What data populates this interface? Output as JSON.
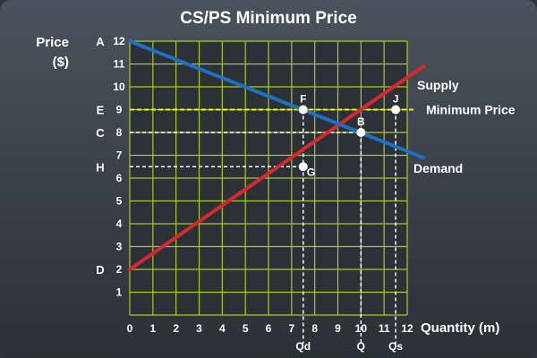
{
  "chart_data": {
    "type": "line",
    "title": "CS/PS Minimum Price",
    "ylabel_line1": "Price",
    "ylabel_line2": "($)",
    "xlabel": "Quantity (m)",
    "xlim": [
      0,
      12
    ],
    "ylim": [
      0,
      12
    ],
    "grid": true,
    "x_ticks": [
      "0",
      "1",
      "2",
      "3",
      "4",
      "5",
      "6",
      "7",
      "8",
      "9",
      "10",
      "11",
      "12"
    ],
    "y_ticks": [
      "1",
      "2",
      "3",
      "4",
      "5",
      "6",
      "7",
      "8",
      "9",
      "10",
      "11",
      "12"
    ],
    "series": [
      {
        "name": "Supply",
        "color": "#d9272e",
        "x": [
          0,
          12.7
        ],
        "y": [
          2,
          10.9
        ]
      },
      {
        "name": "Demand",
        "color": "#1f6fc4",
        "x": [
          0,
          12.7
        ],
        "y": [
          12,
          6.9
        ]
      }
    ],
    "min_price_line": {
      "label": "Minimum Price",
      "value": 9,
      "color": "#f2f20a"
    },
    "points": [
      {
        "label": "F",
        "x": 7.5,
        "y": 9
      },
      {
        "label": "B",
        "x": 10,
        "y": 8
      },
      {
        "label": "J",
        "x": 11.5,
        "y": 9
      },
      {
        "label": "G",
        "x": 7.5,
        "y": 6.5
      }
    ],
    "axis_letters": [
      {
        "label": "A",
        "y": 12
      },
      {
        "label": "E",
        "y": 9
      },
      {
        "label": "C",
        "y": 8
      },
      {
        "label": "H",
        "y": 6.5
      },
      {
        "label": "D",
        "y": 2
      }
    ],
    "x_markers": [
      {
        "label": "Qd",
        "x": 7.5
      },
      {
        "label": "Q",
        "x": 10
      },
      {
        "label": "Qs",
        "x": 11.5
      }
    ],
    "grid_color": "#a8c82c",
    "plot_background": "#2b3137"
  }
}
